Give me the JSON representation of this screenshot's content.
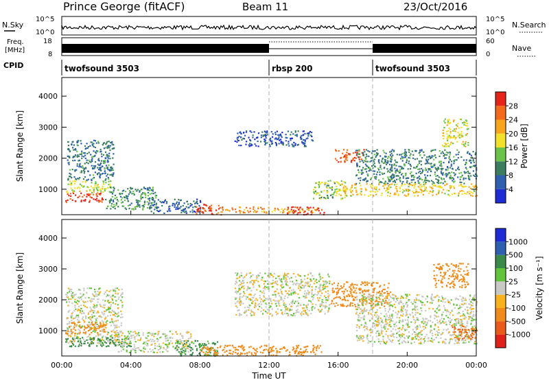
{
  "header": {
    "station": "Prince George (fitACF)",
    "beam": "Beam 11",
    "date": "23/Oct/2016"
  },
  "noise_panel": {
    "left_label": "N.Sky",
    "right_label": "N.Search",
    "left_ticks": [
      "10^5",
      "10^0"
    ],
    "right_ticks": [
      "10^5",
      "10^0"
    ]
  },
  "freq_panel": {
    "left_label_1": "Freq.",
    "left_label_2": "[MHz]",
    "right_label": "Nave",
    "left_ticks": [
      "18",
      "8"
    ],
    "right_ticks": [
      "60",
      "0"
    ]
  },
  "cpid": {
    "label": "CPID",
    "segments": [
      {
        "name": "twofsound 3503",
        "start_h": 0,
        "end_h": 12
      },
      {
        "name": "rbsp 200",
        "start_h": 12,
        "end_h": 18
      },
      {
        "name": "twofsound 3503",
        "start_h": 18,
        "end_h": 24
      }
    ]
  },
  "x_axis": {
    "label": "Time UT",
    "ticks": [
      "00:00",
      "04:00",
      "08:00",
      "12:00",
      "16:00",
      "20:00",
      "00:00"
    ]
  },
  "y_axis_label": "Slant Range [km]",
  "y_ticks": [
    "1000",
    "2000",
    "3000",
    "4000"
  ],
  "power_colorbar": {
    "label": "Power [dB]",
    "ticks": [
      "4",
      "8",
      "12",
      "16",
      "20",
      "24",
      "28"
    ],
    "colors": [
      "#1e2cd6",
      "#2e5fb0",
      "#3a7d5f",
      "#6cc34a",
      "#f2e02a",
      "#f7a51d",
      "#f26a1a",
      "#e6241a"
    ]
  },
  "velocity_colorbar": {
    "label": "Velocity [m s⁻¹]",
    "ticks": [
      "1000",
      "500",
      "100",
      "25",
      "-25",
      "-100",
      "-500",
      "-1000"
    ],
    "colors": [
      "#1e2cd6",
      "#2e5fb0",
      "#3a8a4a",
      "#62c43a",
      "#c8c8c4",
      "#f7b21d",
      "#f08a1a",
      "#ea5a1a",
      "#e0201a"
    ]
  },
  "chart_data": [
    {
      "type": "heatmap",
      "title": "Power",
      "xlabel": "Time UT",
      "ylabel": "Slant Range [km]",
      "xlim": [
        0,
        24
      ],
      "ylim": [
        180,
        4600
      ],
      "colorbar_label": "Power [dB]",
      "colorbar_range": [
        0,
        30
      ],
      "regions": [
        {
          "t0": 0.2,
          "t1": 2.4,
          "r0": 600,
          "r1": 900,
          "value": 28
        },
        {
          "t0": 0.2,
          "t1": 2.8,
          "r0": 900,
          "r1": 1300,
          "value": 16
        },
        {
          "t0": 0.3,
          "t1": 3.0,
          "r0": 1300,
          "r1": 2600,
          "value": 8
        },
        {
          "t0": 2.5,
          "t1": 5.5,
          "r0": 350,
          "r1": 1100,
          "value": 10
        },
        {
          "t0": 5.0,
          "t1": 8.0,
          "r0": 250,
          "r1": 700,
          "value": 6
        },
        {
          "t0": 7.7,
          "t1": 9.3,
          "r0": 200,
          "r1": 550,
          "value": 27
        },
        {
          "t0": 9.0,
          "t1": 12.0,
          "r0": 250,
          "r1": 450,
          "value": 22
        },
        {
          "t0": 12.0,
          "t1": 14.8,
          "r0": 250,
          "r1": 420,
          "value": 20
        },
        {
          "t0": 13.0,
          "t1": 15.2,
          "r0": 200,
          "r1": 450,
          "value": 28
        },
        {
          "t0": 10.0,
          "t1": 14.5,
          "r0": 2400,
          "r1": 2900,
          "value": 5
        },
        {
          "t0": 14.5,
          "t1": 16.5,
          "r0": 700,
          "r1": 1300,
          "value": 14
        },
        {
          "t0": 15.8,
          "t1": 17.5,
          "r0": 1900,
          "r1": 2300,
          "value": 25
        },
        {
          "t0": 16.0,
          "t1": 24.0,
          "r0": 800,
          "r1": 1200,
          "value": 18
        },
        {
          "t0": 17.0,
          "t1": 24.0,
          "r0": 1200,
          "r1": 2300,
          "value": 9
        },
        {
          "t0": 22.0,
          "t1": 23.5,
          "r0": 2400,
          "r1": 3300,
          "value": 17
        }
      ]
    },
    {
      "type": "heatmap",
      "title": "Velocity",
      "xlabel": "Time UT",
      "ylabel": "Slant Range [km]",
      "xlim": [
        0,
        24
      ],
      "ylim": [
        180,
        4600
      ],
      "colorbar_label": "Velocity [m s⁻¹]",
      "regions": [
        {
          "t0": 0.2,
          "t1": 3.5,
          "r0": 600,
          "r1": 2400,
          "value": 0
        },
        {
          "t0": 0.2,
          "t1": 2.5,
          "r0": 900,
          "r1": 1300,
          "value": -300
        },
        {
          "t0": 0.2,
          "t1": 4.0,
          "r0": 500,
          "r1": 800,
          "value": 150
        },
        {
          "t0": 3.0,
          "t1": 7.5,
          "r0": 300,
          "r1": 1000,
          "value": 0
        },
        {
          "t0": 6.5,
          "t1": 9.0,
          "r0": 200,
          "r1": 700,
          "value": 120
        },
        {
          "t0": 8.0,
          "t1": 15.0,
          "r0": 200,
          "r1": 550,
          "value": -200
        },
        {
          "t0": 10.0,
          "t1": 15.5,
          "r0": 1500,
          "r1": 2900,
          "value": 0
        },
        {
          "t0": 15.5,
          "t1": 19.0,
          "r0": 1800,
          "r1": 2600,
          "value": -400
        },
        {
          "t0": 17.0,
          "t1": 24.0,
          "r0": 600,
          "r1": 2200,
          "value": 0
        },
        {
          "t0": 22.5,
          "t1": 24.0,
          "r0": 700,
          "r1": 1200,
          "value": -500
        },
        {
          "t0": 21.5,
          "t1": 23.5,
          "r0": 2400,
          "r1": 3200,
          "value": -300
        }
      ]
    }
  ]
}
